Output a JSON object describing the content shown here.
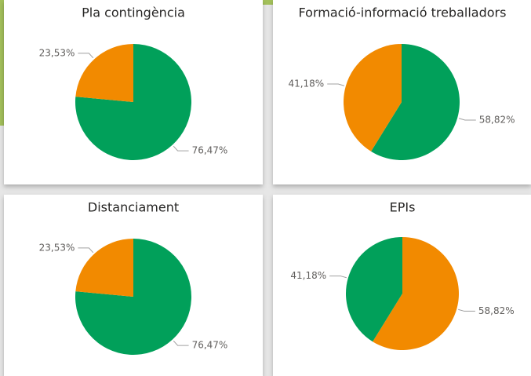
{
  "chart_data": [
    {
      "type": "pie",
      "title": "Pla contingència",
      "values": [
        76.47,
        23.53
      ],
      "value_labels": [
        "76,47%",
        "23,53%"
      ],
      "colors": [
        "#01a05a",
        "#f28a00"
      ]
    },
    {
      "type": "pie",
      "title": "Formació-informació treballadors",
      "values": [
        58.82,
        41.18
      ],
      "value_labels": [
        "58,82%",
        "41,18%"
      ],
      "colors": [
        "#01a05a",
        "#f28a00"
      ]
    },
    {
      "type": "pie",
      "title": "Distanciament",
      "values": [
        76.47,
        23.53
      ],
      "value_labels": [
        "76,47%",
        "23,53%"
      ],
      "colors": [
        "#01a05a",
        "#f28a00"
      ]
    },
    {
      "type": "pie",
      "title": "EPIs",
      "values": [
        58.82,
        41.18
      ],
      "value_labels": [
        "58,82%",
        "41,18%"
      ],
      "colors": [
        "#f28a00",
        "#01a05a"
      ]
    }
  ]
}
